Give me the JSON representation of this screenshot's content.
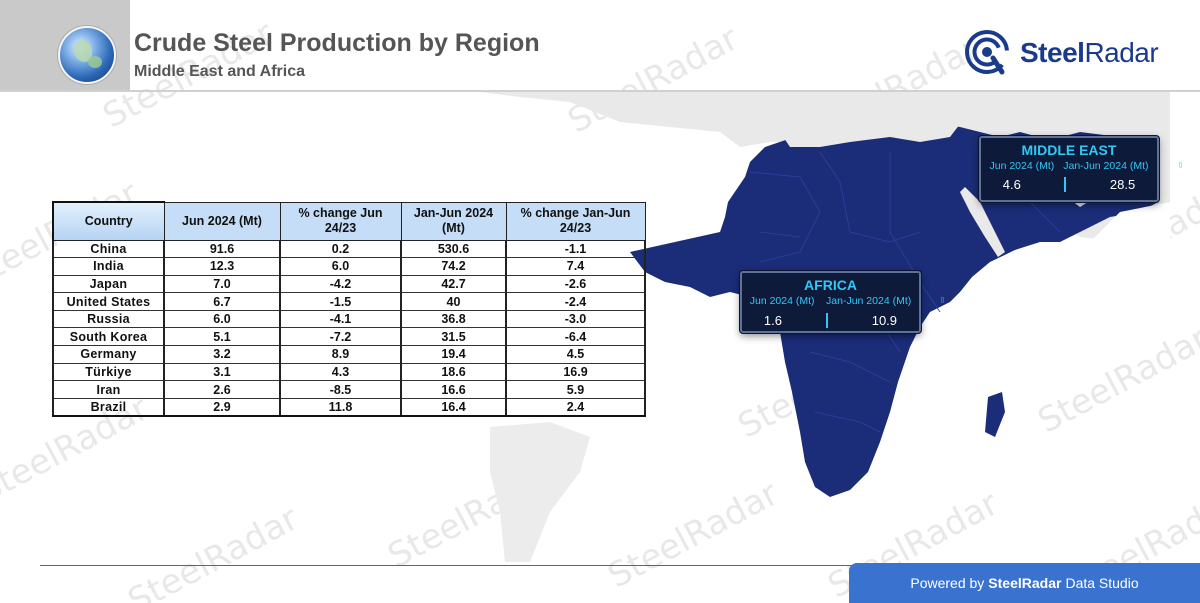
{
  "header": {
    "title": "Crude Steel Production by Region",
    "subtitle": "Middle East and Africa",
    "brand": "SteelRadar",
    "brand_bold": "Steel",
    "brand_rest": "Radar"
  },
  "watermark_text": "SteelRadar",
  "table": {
    "headers": [
      "Country",
      "Jun 2024 (Mt)",
      "% change Jun 24/23",
      "Jan-Jun 2024 (Mt)",
      "% change Jan-Jun 24/23"
    ],
    "rows": [
      [
        "China",
        "91.6",
        "0.2",
        "530.6",
        "-1.1"
      ],
      [
        "India",
        "12.3",
        "6.0",
        "74.2",
        "7.4"
      ],
      [
        "Japan",
        "7.0",
        "-4.2",
        "42.7",
        "-2.6"
      ],
      [
        "United States",
        "6.7",
        "-1.5",
        "40",
        "-2.4"
      ],
      [
        "Russia",
        "6.0",
        "-4.1",
        "36.8",
        "-3.0"
      ],
      [
        "South Korea",
        "5.1",
        "-7.2",
        "31.5",
        "-6.4"
      ],
      [
        "Germany",
        "3.2",
        "8.9",
        "19.4",
        "4.5"
      ],
      [
        "Türkiye",
        "3.1",
        "4.3",
        "18.6",
        "16.9"
      ],
      [
        "Iran",
        "2.6",
        "-8.5",
        "16.6",
        "5.9"
      ],
      [
        "Brazil",
        "2.9",
        "11.8",
        "16.4",
        "2.4"
      ]
    ]
  },
  "regions": {
    "middle_east": {
      "title": "MIDDLE EAST",
      "col1_label": "Jun 2024 (Mt)",
      "col2_label": "Jan-Jun 2024 (Mt)",
      "col1_value": "4.6",
      "col2_value": "28.5",
      "glyph": "▯"
    },
    "africa": {
      "title": "AFRICA",
      "col1_label": "Jun 2024 (Mt)",
      "col2_label": "Jan-Jun 2024 (Mt)",
      "col1_value": "1.6",
      "col2_value": "10.9",
      "glyph": "▯"
    }
  },
  "footer": {
    "prefix": "Powered by",
    "brand": "SteelRadar",
    "suffix": "Data Studio"
  },
  "colors": {
    "map_fill": "#1b2c78",
    "map_gray": "#e6e6e6",
    "box_bg": "#0e1a3a",
    "box_accent": "#33c7f4",
    "footer_bg": "#3a73cf",
    "header_blue": "#c5ddf6"
  }
}
